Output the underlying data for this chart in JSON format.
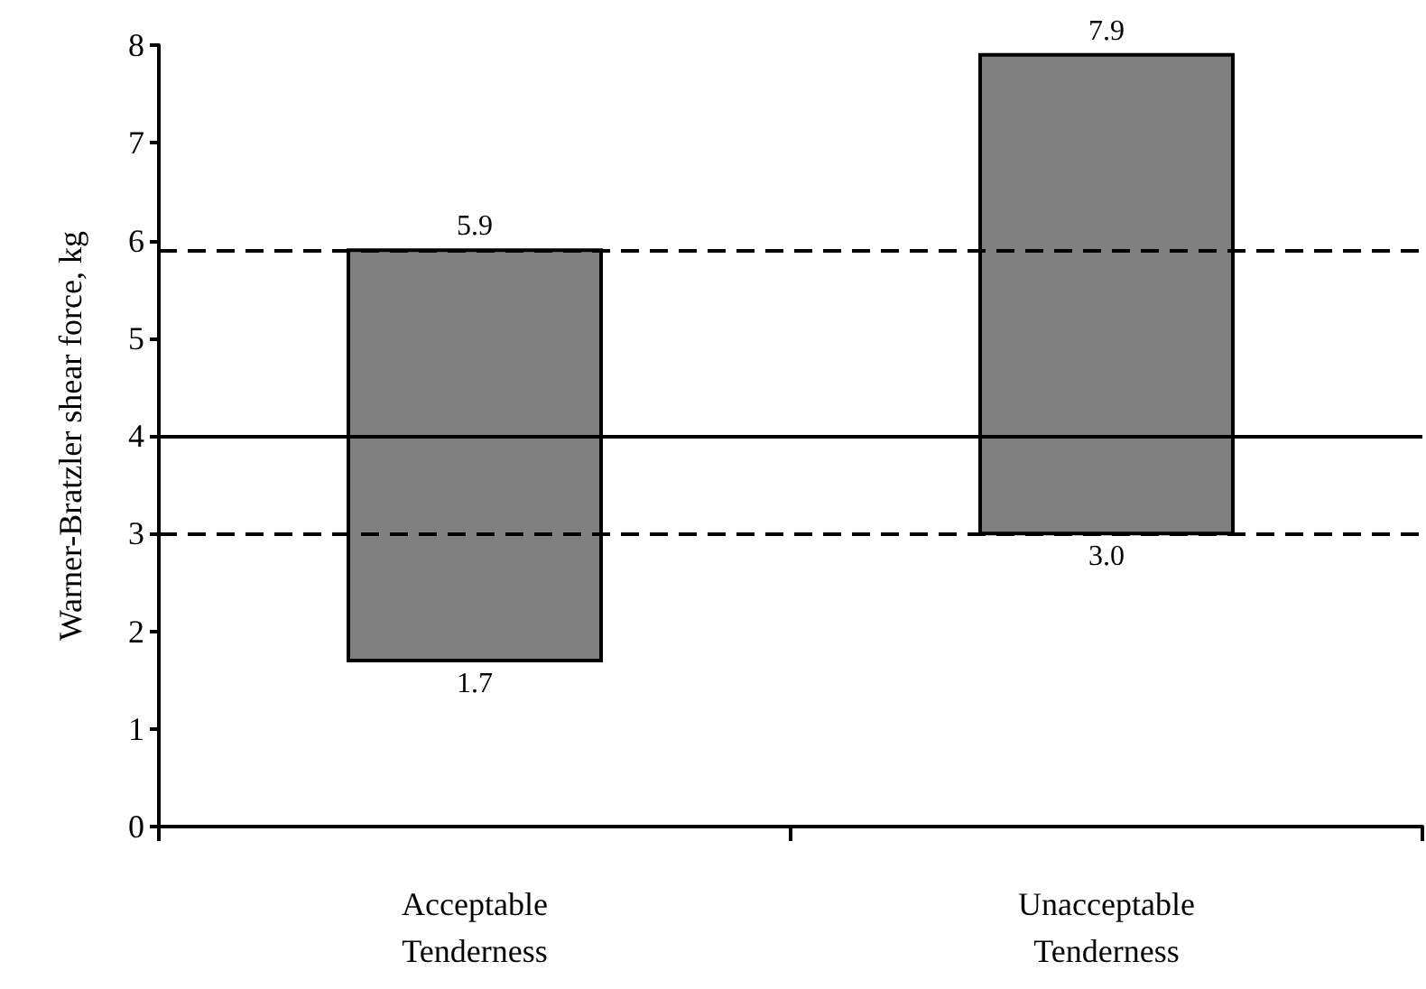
{
  "chart_data": {
    "type": "bar",
    "ylabel": "Warner-Bratzler shear force, kg",
    "categories": [
      "Acceptable\nTenderness",
      "Unacceptable\nTenderness"
    ],
    "base": [
      1.7,
      3.0
    ],
    "values": [
      4.2,
      4.9
    ],
    "color": "#808080",
    "ylim": [
      0,
      8
    ],
    "yticks": [
      0,
      1,
      2,
      3,
      4,
      5,
      6,
      7,
      8
    ],
    "grid": false,
    "ref_lines": [
      {
        "axis": "y",
        "value": 5.9,
        "line_style": "dashed",
        "color": "#000000"
      },
      {
        "axis": "y",
        "value": 4.0,
        "line_style": "solid",
        "color": "#000000"
      },
      {
        "axis": "y",
        "value": 3.0,
        "line_style": "dashed",
        "color": "#000000"
      }
    ],
    "annotations": [
      {
        "text": "5.9",
        "x": "Acceptable\nTenderness",
        "y": 5.9
      },
      {
        "text": "1.7",
        "x": "Acceptable\nTenderness",
        "y": 1.7
      },
      {
        "text": "7.9",
        "x": "Unacceptable\nTenderness",
        "y": 7.9
      },
      {
        "text": "3.0",
        "x": "Unacceptable\nTenderness",
        "y": 3.0
      }
    ]
  }
}
